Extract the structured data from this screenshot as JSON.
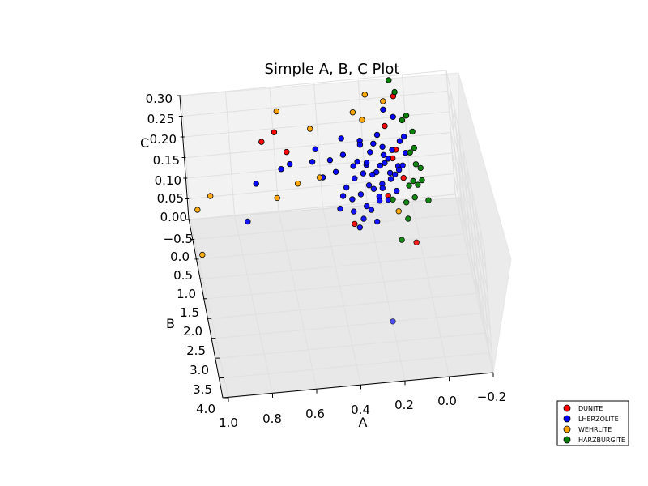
{
  "chart_data": {
    "type": "scatter",
    "projection": "3d",
    "title": "Simple A, B, C Plot",
    "axes": {
      "A": {
        "label": "A",
        "ticks": [
          "1.0",
          "0.8",
          "0.6",
          "0.4",
          "0.2",
          "0.0",
          "−0.2"
        ]
      },
      "B": {
        "label": "B",
        "ticks": [
          "−0.5",
          "0.0",
          "0.5",
          "1.0",
          "1.5",
          "2.0",
          "2.5",
          "3.0",
          "3.5",
          "4.0"
        ]
      },
      "C": {
        "label": "C",
        "ticks": [
          "0.00",
          "0.05",
          "0.10",
          "0.15",
          "0.20",
          "0.25",
          "0.30"
        ]
      }
    },
    "grid": true,
    "legend": "bottom-right",
    "series": [
      {
        "name": "DUNITE",
        "color": "#ff0000",
        "points": [
          [
            0.05,
            -0.4,
            0.26
          ],
          [
            0.6,
            -0.3,
            0.21
          ],
          [
            0.66,
            -0.3,
            0.19
          ],
          [
            0.55,
            -0.3,
            0.16
          ],
          [
            0.1,
            -0.3,
            0.2
          ],
          [
            0.06,
            -0.2,
            0.15
          ],
          [
            0.08,
            -0.1,
            0.14
          ],
          [
            0.04,
            0.0,
            0.1
          ],
          [
            0.28,
            0.2,
            0.02
          ],
          [
            0.12,
            0.2,
            0.08
          ],
          [
            0.02,
            0.7,
            0.01
          ]
        ]
      },
      {
        "name": "LHERZOLITE",
        "color": "#0000ff",
        "points": [
          [
            0.7,
            -0.2,
            0.1
          ],
          [
            0.76,
            0.2,
            0.05
          ],
          [
            0.58,
            -0.3,
            0.12
          ],
          [
            0.54,
            -0.3,
            0.13
          ],
          [
            0.42,
            -0.3,
            0.16
          ],
          [
            0.44,
            -0.2,
            0.14
          ],
          [
            0.34,
            -0.1,
            0.12
          ],
          [
            0.3,
            -0.2,
            0.15
          ],
          [
            0.22,
            -0.2,
            0.18
          ],
          [
            0.18,
            -0.1,
            0.16
          ],
          [
            0.14,
            -0.2,
            0.19
          ],
          [
            0.1,
            -0.4,
            0.23
          ],
          [
            0.06,
            -0.3,
            0.22
          ],
          [
            0.12,
            -0.1,
            0.15
          ],
          [
            0.08,
            -0.1,
            0.16
          ],
          [
            0.04,
            -0.2,
            0.17
          ],
          [
            0.02,
            -0.1,
            0.15
          ],
          [
            0.16,
            0.0,
            0.12
          ],
          [
            0.2,
            -0.1,
            0.13
          ],
          [
            0.26,
            0.0,
            0.11
          ],
          [
            0.3,
            0.0,
            0.09
          ],
          [
            0.24,
            0.1,
            0.08
          ],
          [
            0.14,
            0.1,
            0.1
          ],
          [
            0.18,
            0.1,
            0.09
          ],
          [
            0.1,
            0.1,
            0.11
          ],
          [
            0.06,
            0.0,
            0.13
          ],
          [
            0.12,
            0.0,
            0.14
          ],
          [
            0.22,
            0.2,
            0.06
          ],
          [
            0.28,
            0.1,
            0.07
          ],
          [
            0.16,
            0.2,
            0.08
          ],
          [
            0.2,
            -0.05,
            0.14
          ],
          [
            0.18,
            0.05,
            0.12
          ],
          [
            0.14,
            -0.05,
            0.13
          ],
          [
            0.26,
            -0.1,
            0.13
          ],
          [
            0.32,
            0.1,
            0.08
          ],
          [
            0.1,
            0.05,
            0.12
          ],
          [
            0.08,
            0.1,
            0.12
          ],
          [
            0.04,
            0.0,
            0.13
          ],
          [
            0.22,
            -0.2,
            0.17
          ],
          [
            0.3,
            -0.3,
            0.18
          ],
          [
            0.36,
            -0.2,
            0.14
          ],
          [
            0.4,
            -0.1,
            0.11
          ],
          [
            0.24,
            0.3,
            0.04
          ],
          [
            0.2,
            0.2,
            0.05
          ],
          [
            0.12,
            0.2,
            0.07
          ],
          [
            0.16,
            -0.2,
            0.17
          ],
          [
            0.06,
            0.1,
            0.13
          ],
          [
            0.28,
            0.2,
            0.05
          ],
          [
            0.18,
            0.3,
            0.03
          ],
          [
            0.1,
            -0.1,
            0.14
          ],
          [
            0.14,
            0.1,
            0.09
          ],
          [
            0.02,
            -0.2,
            0.18
          ],
          [
            0.26,
            0.3,
            0.02
          ],
          [
            0.34,
            0.2,
            0.06
          ],
          [
            0.2,
            0.1,
            0.1
          ],
          [
            0.08,
            0.2,
            0.09
          ],
          [
            0.16,
            0.2,
            0.07
          ],
          [
            0.22,
            0.0,
            0.12
          ],
          [
            0.12,
            -0.2,
            0.16
          ],
          [
            0.24,
            -0.1,
            0.14
          ],
          [
            0.2,
            2.6,
            0.01
          ]
        ]
      },
      {
        "name": "WEHRLITE",
        "color": "#ffa500",
        "points": [
          [
            0.98,
            0.4,
            0.0
          ],
          [
            0.98,
            0.1,
            0.08
          ],
          [
            0.92,
            0.2,
            0.12
          ],
          [
            0.58,
            -0.4,
            0.25
          ],
          [
            0.44,
            -0.2,
            0.22
          ],
          [
            0.52,
            0.1,
            0.12
          ],
          [
            0.62,
            0.2,
            0.1
          ],
          [
            0.42,
            0.1,
            0.13
          ],
          [
            0.18,
            -0.3,
            0.28
          ],
          [
            0.1,
            -0.3,
            0.26
          ],
          [
            0.24,
            -0.3,
            0.24
          ],
          [
            0.2,
            -0.3,
            0.22
          ],
          [
            0.08,
            0.3,
            0.05
          ]
        ]
      },
      {
        "name": "HARZBURGITE",
        "color": "#008000",
        "points": [
          [
            0.06,
            -0.6,
            0.28
          ],
          [
            0.04,
            -0.5,
            0.26
          ],
          [
            0.0,
            -0.3,
            0.22
          ],
          [
            -0.02,
            -0.2,
            0.19
          ],
          [
            0.02,
            -0.3,
            0.21
          ],
          [
            -0.02,
            -0.1,
            0.16
          ],
          [
            0.0,
            -0.1,
            0.15
          ],
          [
            -0.02,
            0.0,
            0.13
          ],
          [
            -0.04,
            0.0,
            0.12
          ],
          [
            0.02,
            0.1,
            0.09
          ],
          [
            0.0,
            0.1,
            0.1
          ],
          [
            -0.02,
            0.1,
            0.09
          ],
          [
            -0.06,
            0.2,
            0.06
          ],
          [
            0.04,
            0.2,
            0.06
          ],
          [
            0.1,
            0.2,
            0.07
          ],
          [
            0.08,
            0.5,
            0.0
          ],
          [
            0.04,
            0.3,
            0.03
          ],
          [
            0.0,
            0.2,
            0.07
          ],
          [
            -0.04,
            0.1,
            0.1
          ]
        ]
      }
    ]
  }
}
